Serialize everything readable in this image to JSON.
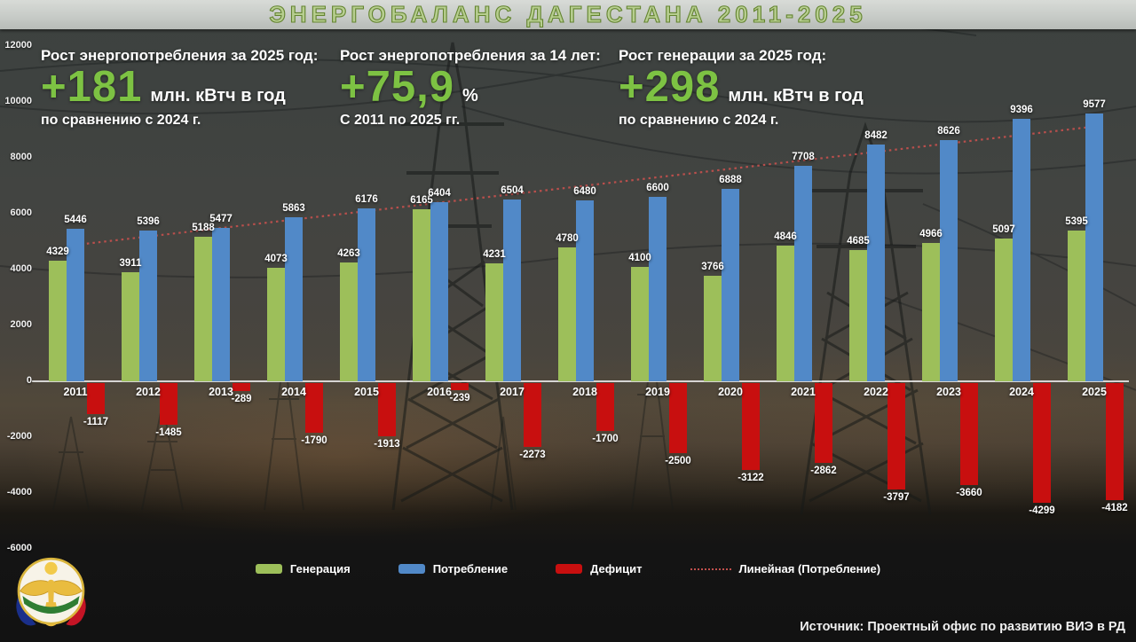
{
  "title": "ЭНЕРГОБАЛАНС ДАГЕСТАНА 2011-2025",
  "theme": {
    "accent_green": "#7dc243",
    "title_green": "#b7ce90",
    "generation_color": "#9dbf5a",
    "consumption_color": "#5189c8",
    "deficit_color": "#c80f0f",
    "trendline_color": "#c0504d"
  },
  "stats": [
    {
      "heading": "Рост энергопотребления за 2025 год:",
      "value": "+181",
      "unit": "млн. кВтч в год",
      "note": "по сравнению с 2024 г."
    },
    {
      "heading": "Рост энергопотребления за 14 лет:",
      "value": "+75,9",
      "unit": "%",
      "note": "С 2011 по 2025 гг."
    },
    {
      "heading": "Рост генерации за 2025 год:",
      "value": "+298",
      "unit": "млн. кВтч в год",
      "note": "по сравнению с 2024 г."
    }
  ],
  "chart_data": {
    "type": "bar",
    "title": "Энергобаланс Дагестана 2011-2025",
    "categories": [
      2011,
      2012,
      2013,
      2014,
      2015,
      2016,
      2017,
      2018,
      2019,
      2020,
      2021,
      2022,
      2023,
      2024,
      2025
    ],
    "series": [
      {
        "name": "Генерация",
        "color": "#9dbf5a",
        "values": [
          4329,
          3911,
          5188,
          4073,
          4263,
          6165,
          4231,
          4780,
          4100,
          3766,
          4846,
          4685,
          4966,
          5097,
          5395
        ]
      },
      {
        "name": "Потребление",
        "color": "#5189c8",
        "values": [
          5446,
          5396,
          5477,
          5863,
          6176,
          6404,
          6504,
          6480,
          6600,
          6888,
          7708,
          8482,
          8626,
          9396,
          9577
        ]
      },
      {
        "name": "Дефицит",
        "color": "#c80f0f",
        "values": [
          -1117,
          -1485,
          -289,
          -1790,
          -1913,
          -239,
          -2273,
          -1700,
          -2500,
          -3122,
          -2862,
          -3797,
          -3660,
          -4299,
          -4182
        ]
      }
    ],
    "trendline": {
      "name": "Линейная (Потребление)",
      "based_on": "Потребление",
      "style": "dotted",
      "color": "#c0504d"
    },
    "y_axis": {
      "ticks": [
        12000,
        10000,
        8000,
        6000,
        4000,
        2000,
        0,
        -2000,
        -4000,
        -6000
      ],
      "min": -6000,
      "max": 12000
    },
    "grid": false,
    "legend_position": "bottom",
    "bar_value_labels": true
  },
  "legend": [
    {
      "label": "Генерация",
      "color": "#9dbf5a",
      "type": "box"
    },
    {
      "label": "Потребление",
      "color": "#5189c8",
      "type": "box"
    },
    {
      "label": "Дефицит",
      "color": "#c80f0f",
      "type": "box"
    },
    {
      "label": "Линейная (Потребление)",
      "color": "#c0504d",
      "type": "dotted-line"
    }
  ],
  "footer": {
    "source": "Источник: Проектный офис по развитию ВИЭ в РД"
  },
  "emblem": "dagestan-coat-of-arms"
}
